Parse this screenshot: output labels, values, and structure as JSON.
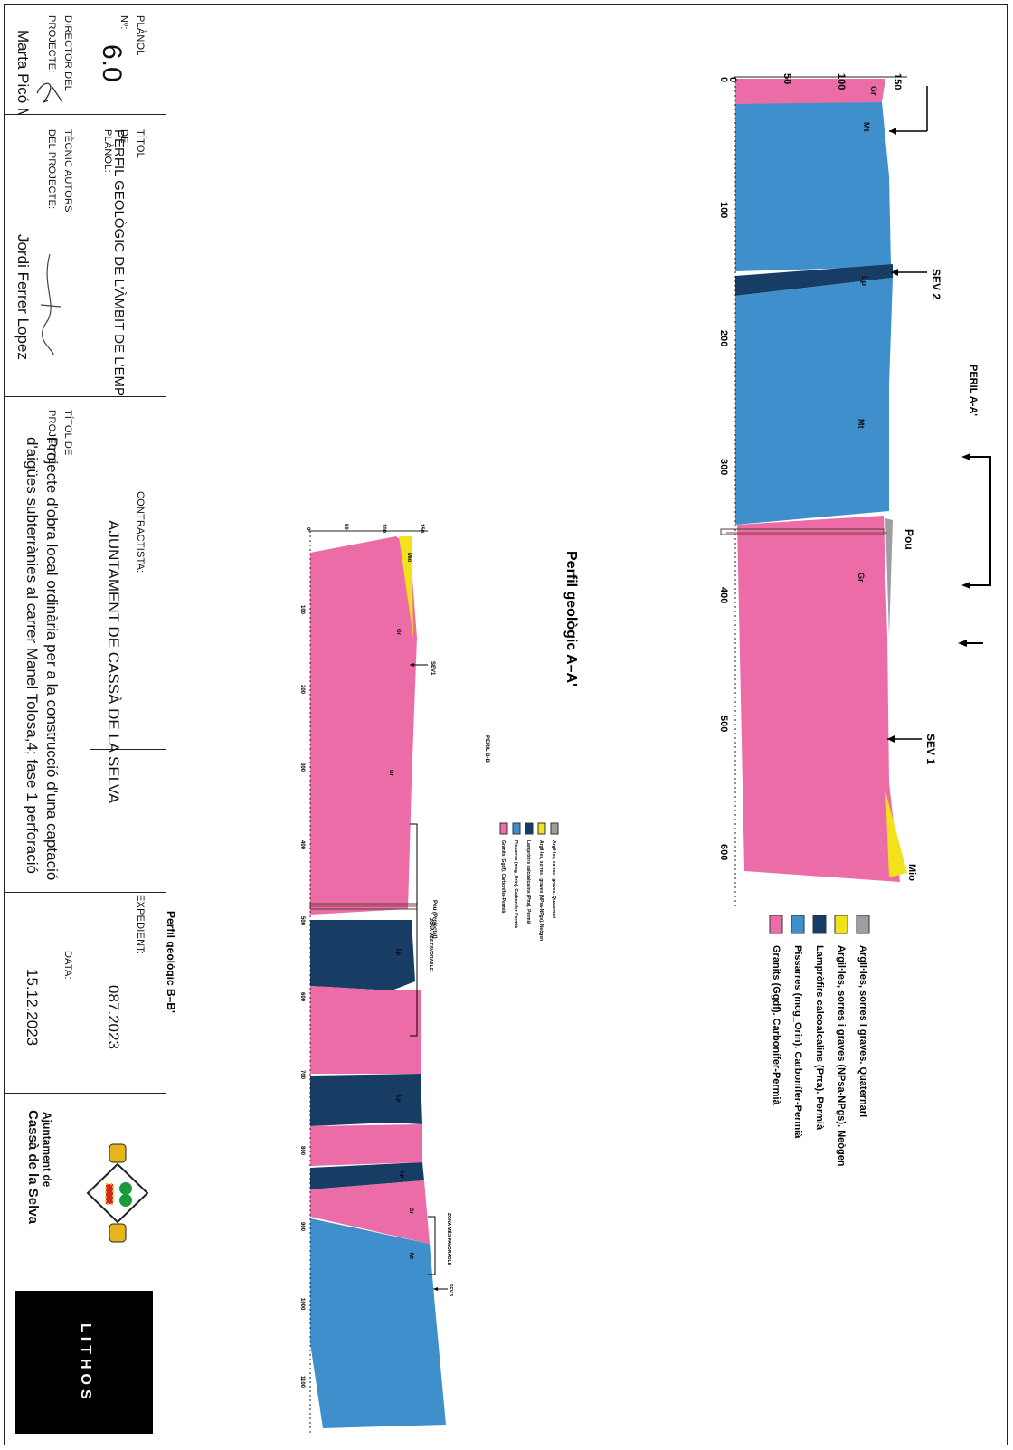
{
  "title_block": {
    "planol_label": "PLÀNOL Nº:",
    "planol_value": "6.0",
    "titol_planol_label": "TÍTOL DE PLÀNOL:",
    "titol_planol_value": "PERFIL GEOLÒGIC DE L'ÀMBIT DE L'EMPLAÇAMENT",
    "contractista_label": "CONTRACTISTA:",
    "contractista_value": "AJUNTAMENT DE CASSÀ DE LA SELVA",
    "expedient_label": "EXPEDIENT:",
    "expedient_value": "087.2023",
    "director_label": "DIRECTOR DEL PROJECTE:",
    "director_name": "Marta Picó Micaló",
    "tecnic_label": "TÈCNIC AUTORS DEL PROJECTE:",
    "tecnic_name": "Jordi Ferrer Lopez",
    "titol_projecte_label": "TÍTOL DE PROJECTE:",
    "titol_projecte_line1": "Projecte d'obra local ordinària per a la construcció d'una captació",
    "titol_projecte_line2": "d'aigües subterrànies al carrer Manel Tolosa,4; fase 1 perforació",
    "data_label": "DATA:",
    "data_value": "15.12.2023",
    "logo_line1": "Ajuntament de",
    "logo_line2": "Cassà de la Selva",
    "brand": "LITHOS"
  },
  "colors": {
    "quaternari": "#9e9e9e",
    "neogen": "#f2e21c",
    "lamprofirs": "#173d64",
    "pissarres": "#3f8fcd",
    "granits": "#ec6ca8"
  },
  "legend": [
    {
      "color_key": "quaternari",
      "label": "Argil·les, sorres i graves. Quaternari"
    },
    {
      "color_key": "neogen",
      "label": "Argil·les, sorres i graves (NPsa-NPgs). Neògen"
    },
    {
      "color_key": "lamprofirs",
      "label": "Lampròfirs calcoalcalins (Pπa). Permià"
    },
    {
      "color_key": "pissarres",
      "label": "Pissarres (mcg_Orin). Carbonífer-Permià"
    },
    {
      "color_key": "granits",
      "label": "Granits (Ggdf). Carbonífer-Permià"
    }
  ],
  "section_a": {
    "title": "Perfil geològic A–A'",
    "line_label": "PERIL A-A'",
    "depth_ticks": [
      "0",
      "50",
      "100",
      "150"
    ],
    "distance_ticks": [
      "0",
      "100",
      "200",
      "300",
      "400",
      "500",
      "600"
    ],
    "labels": {
      "sev1": "SEV 1",
      "sev2": "SEV 2",
      "pou": "Pou",
      "mio": "Mio"
    },
    "unit_labels": [
      "Gr",
      "Mt",
      "Lp",
      "Mt",
      "Gr"
    ]
  },
  "section_b": {
    "title": "Perfil geològic B–B'",
    "line_label": "PERIL B-B'",
    "depth_ticks": [
      "0",
      "50",
      "100",
      "150"
    ],
    "distance_ticks": [
      "100",
      "200",
      "300",
      "400",
      "500",
      "600",
      "700",
      "800",
      "900",
      "1000",
      "1100"
    ],
    "labels": {
      "sev1": "SEV1",
      "sev5": "SEV 5",
      "pou": "Pou (Projectat)",
      "zona1": "ZONA MÉS FAVORABLE",
      "zona2": "ZONA MÉS FAVORABLE",
      "mio": "Mio"
    },
    "unit_labels": [
      "Gr",
      "Gr",
      "Lp",
      "Lp",
      "Lp",
      "Gr",
      "Mt"
    ]
  }
}
